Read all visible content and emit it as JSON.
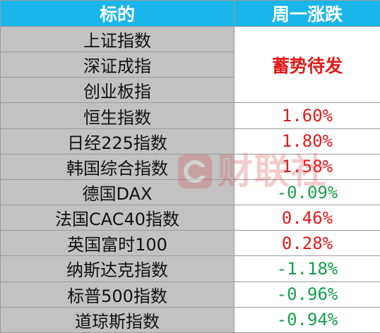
{
  "table": {
    "headers": [
      "标的",
      "周一涨跌"
    ],
    "merged_note": "蓄势待发",
    "rows": [
      {
        "name": "上证指数",
        "value": null
      },
      {
        "name": "深证成指",
        "value": null
      },
      {
        "name": "创业板指",
        "value": null
      },
      {
        "name": "恒生指数",
        "value": "1.60%",
        "dir": "up"
      },
      {
        "name": "日经225指数",
        "value": "1.80%",
        "dir": "up"
      },
      {
        "name": "韩国综合指数",
        "value": "1.58%",
        "dir": "up"
      },
      {
        "name": "德国DAX",
        "value": "-0.09%",
        "dir": "down"
      },
      {
        "name": "法国CAC40指数",
        "value": "0.46%",
        "dir": "up"
      },
      {
        "name": "英国富时100",
        "value": "0.28%",
        "dir": "up"
      },
      {
        "name": "纳斯达克指数",
        "value": "-1.18%",
        "dir": "down"
      },
      {
        "name": "标普500指数",
        "value": "-0.96%",
        "dir": "down"
      },
      {
        "name": "道琼斯指数",
        "value": "-0.94%",
        "dir": "down"
      }
    ]
  },
  "watermark": {
    "text": "财联社",
    "logo_color": "#d84a4a"
  },
  "colors": {
    "header_bg": "#19b6ea",
    "name_bg": "#c2c2c2",
    "up": "#e21b1b",
    "down": "#14a04a"
  }
}
